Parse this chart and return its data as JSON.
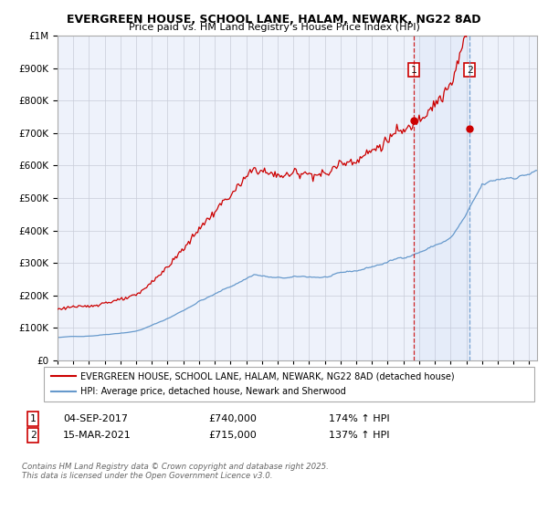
{
  "title_line1": "EVERGREEN HOUSE, SCHOOL LANE, HALAM, NEWARK, NG22 8AD",
  "title_line2": "Price paid vs. HM Land Registry's House Price Index (HPI)",
  "legend_line1": "EVERGREEN HOUSE, SCHOOL LANE, HALAM, NEWARK, NG22 8AD (detached house)",
  "legend_line2": "HPI: Average price, detached house, Newark and Sherwood",
  "annotation1_label": "1",
  "annotation1_date": "04-SEP-2017",
  "annotation1_price": "£740,000",
  "annotation1_hpi": "174% ↑ HPI",
  "annotation2_label": "2",
  "annotation2_date": "15-MAR-2021",
  "annotation2_price": "£715,000",
  "annotation2_hpi": "137% ↑ HPI",
  "sale1_year": 2017.67,
  "sale1_value": 740000,
  "sale2_year": 2021.21,
  "sale2_value": 715000,
  "xmin": 1995,
  "xmax": 2025.5,
  "ymin": 0,
  "ymax": 1000000,
  "red_color": "#cc0000",
  "blue_color": "#6699cc",
  "chart_bg": "#eef2fb",
  "grid_color": "#c8ccd8",
  "footer_text": "Contains HM Land Registry data © Crown copyright and database right 2025.\nThis data is licensed under the Open Government Licence v3.0."
}
